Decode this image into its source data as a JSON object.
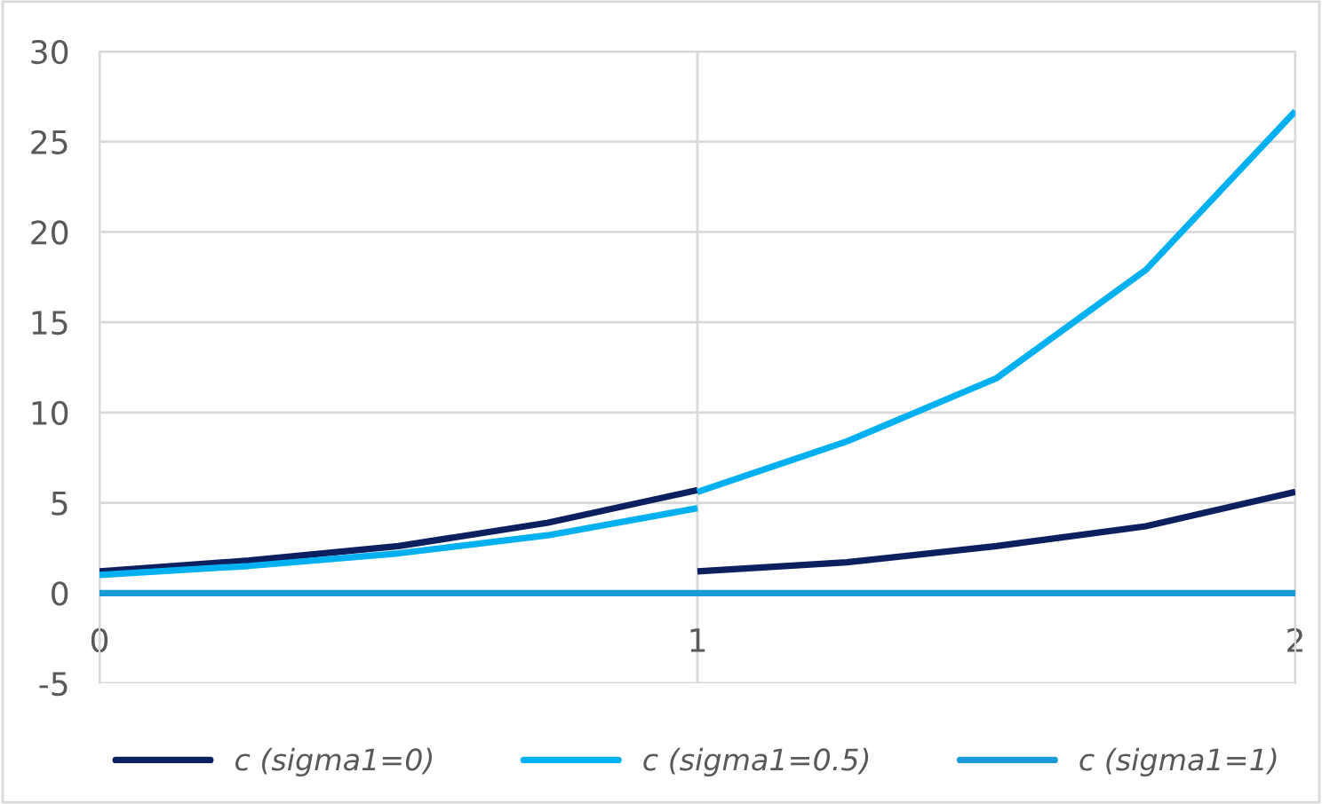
{
  "chart_data": {
    "type": "line",
    "x": [
      0,
      0.25,
      0.5,
      0.75,
      1,
      null,
      1,
      1.25,
      1.5,
      1.75,
      2
    ],
    "series": [
      {
        "name": "c (sigma1=0)",
        "color": "#0c1f5e",
        "values": [
          1.2,
          1.8,
          2.6,
          3.9,
          5.7,
          null,
          1.2,
          1.7,
          2.6,
          3.7,
          5.6
        ]
      },
      {
        "name": "c (sigma1=0.5)",
        "color": "#00b0f0",
        "values": [
          1.0,
          1.5,
          2.2,
          3.2,
          4.7,
          null,
          5.6,
          8.4,
          11.9,
          17.9,
          26.7
        ]
      },
      {
        "name": "c (sigma1=1)",
        "color": "#1a9ad8",
        "values": [
          0,
          0,
          0,
          0,
          0,
          null,
          0,
          0,
          0,
          0,
          0
        ]
      }
    ],
    "xlim": [
      0,
      2
    ],
    "xticks": [
      0,
      1,
      2
    ],
    "ylim": [
      -5,
      30
    ],
    "yticks": [
      -5,
      0,
      5,
      10,
      15,
      20,
      25,
      30
    ],
    "grid": true,
    "legend": "bottom",
    "marker": "none",
    "line_style": "solid"
  }
}
